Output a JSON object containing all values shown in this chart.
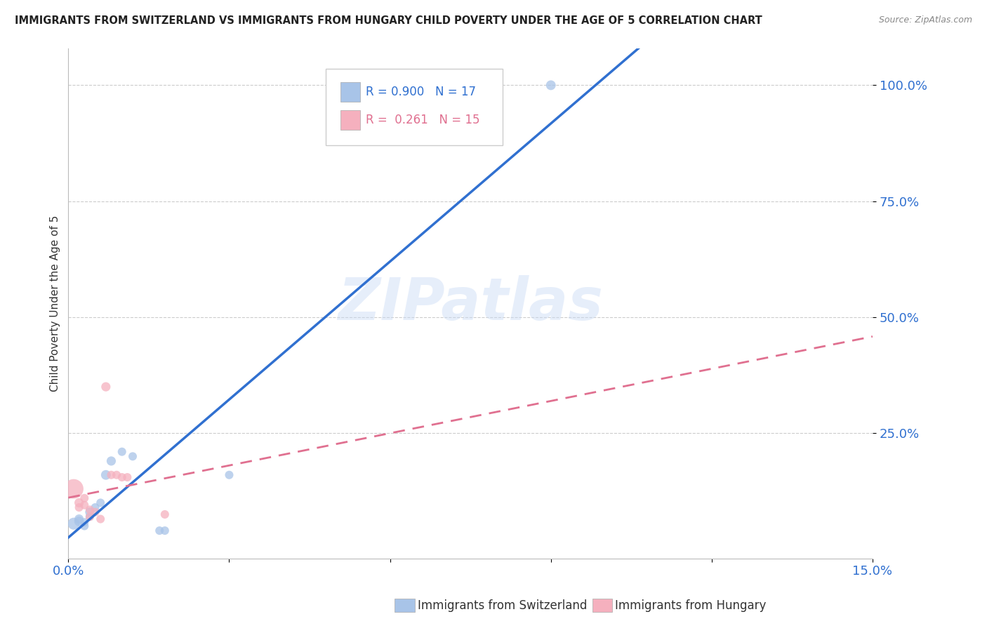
{
  "title": "IMMIGRANTS FROM SWITZERLAND VS IMMIGRANTS FROM HUNGARY CHILD POVERTY UNDER THE AGE OF 5 CORRELATION CHART",
  "source": "Source: ZipAtlas.com",
  "ylabel": "Child Poverty Under the Age of 5",
  "watermark": "ZIPatlas",
  "xlim": [
    0.0,
    0.15
  ],
  "ylim": [
    -0.02,
    1.08
  ],
  "xticks": [
    0.0,
    0.03,
    0.06,
    0.09,
    0.12,
    0.15
  ],
  "xticklabels_show": [
    "0.0%",
    "15.0%"
  ],
  "ytick_vals": [
    0.25,
    0.5,
    0.75,
    1.0
  ],
  "yticklabels": [
    "25.0%",
    "50.0%",
    "75.0%",
    "100.0%"
  ],
  "switzerland_R": 0.9,
  "switzerland_N": 17,
  "hungary_R": 0.261,
  "hungary_N": 15,
  "switzerland_color": "#a8c4e8",
  "hungary_color": "#f5b0be",
  "switzerland_line_color": "#3070d0",
  "hungary_line_color": "#e07090",
  "legend_label_switzerland": "Immigrants from Switzerland",
  "legend_label_hungary": "Immigrants from Hungary",
  "switzerland_points": [
    [
      0.001,
      0.055,
      30
    ],
    [
      0.002,
      0.06,
      20
    ],
    [
      0.002,
      0.065,
      18
    ],
    [
      0.003,
      0.058,
      15
    ],
    [
      0.003,
      0.05,
      15
    ],
    [
      0.004,
      0.07,
      15
    ],
    [
      0.004,
      0.08,
      18
    ],
    [
      0.005,
      0.09,
      15
    ],
    [
      0.006,
      0.1,
      15
    ],
    [
      0.007,
      0.16,
      20
    ],
    [
      0.008,
      0.19,
      18
    ],
    [
      0.01,
      0.21,
      15
    ],
    [
      0.012,
      0.2,
      15
    ],
    [
      0.017,
      0.04,
      15
    ],
    [
      0.018,
      0.04,
      15
    ],
    [
      0.03,
      0.16,
      15
    ],
    [
      0.09,
      1.0,
      20
    ]
  ],
  "hungary_points": [
    [
      0.001,
      0.13,
      80
    ],
    [
      0.002,
      0.1,
      18
    ],
    [
      0.002,
      0.09,
      15
    ],
    [
      0.003,
      0.11,
      15
    ],
    [
      0.003,
      0.095,
      15
    ],
    [
      0.004,
      0.085,
      15
    ],
    [
      0.004,
      0.07,
      15
    ],
    [
      0.005,
      0.08,
      15
    ],
    [
      0.006,
      0.065,
      15
    ],
    [
      0.007,
      0.35,
      18
    ],
    [
      0.008,
      0.16,
      15
    ],
    [
      0.009,
      0.16,
      15
    ],
    [
      0.01,
      0.155,
      15
    ],
    [
      0.011,
      0.155,
      15
    ],
    [
      0.018,
      0.075,
      15
    ]
  ],
  "background_color": "#ffffff",
  "grid_color": "#cccccc"
}
